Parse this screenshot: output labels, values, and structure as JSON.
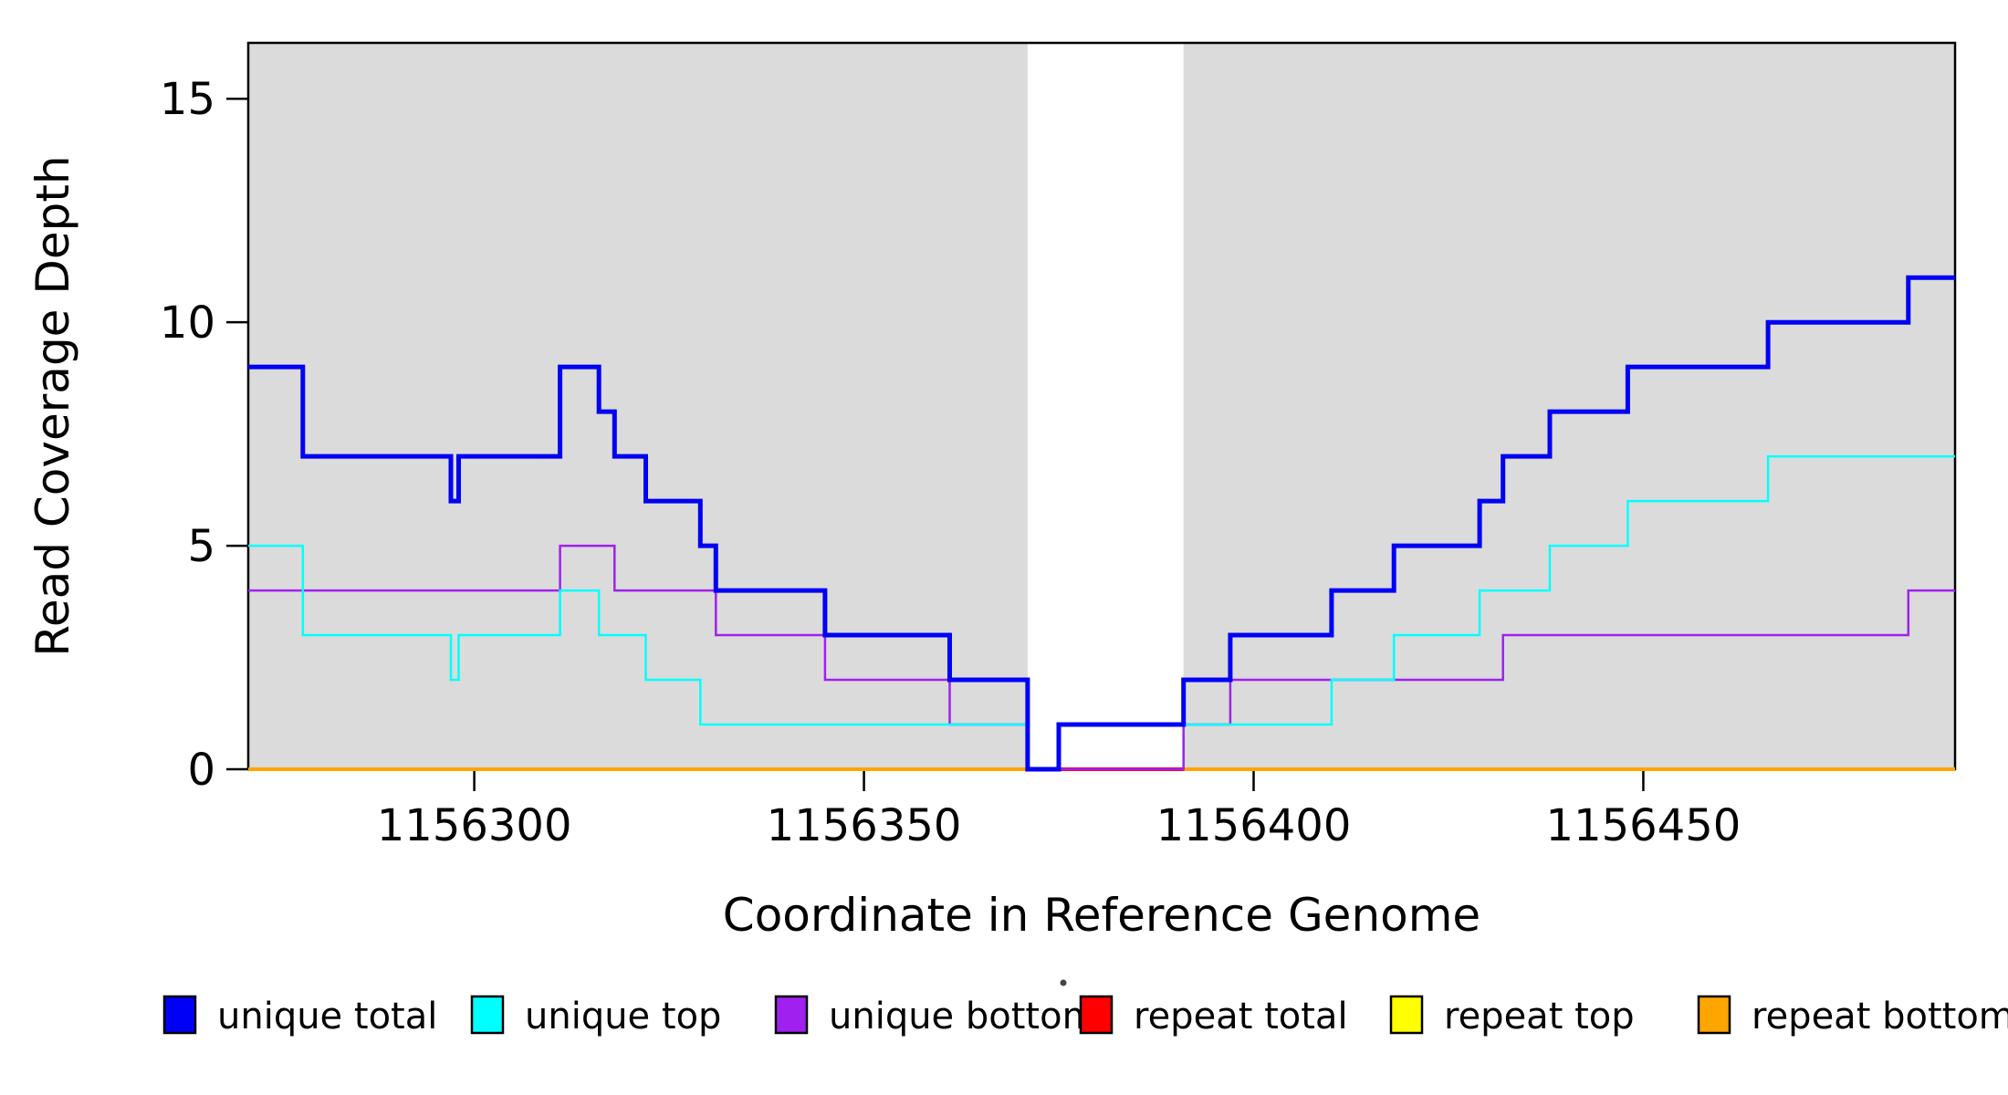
{
  "chart_data": {
    "type": "line",
    "subtype": "step-coverage",
    "title": "",
    "xlabel": "Coordinate in Reference Genome",
    "ylabel": "Read Coverage Depth",
    "x_axis": {
      "min": 1156271,
      "max": 1156490,
      "ticks": [
        1156300,
        1156350,
        1156400,
        1156450
      ]
    },
    "y_axis": {
      "min": 0,
      "max": 16.25,
      "ticks": [
        0,
        5,
        10,
        15
      ]
    },
    "grid": "off",
    "background_regions": [
      {
        "name": "unique-region-left",
        "start": 1156271,
        "end": 1156371,
        "color": "#DBDBDB"
      },
      {
        "name": "unique-region-right",
        "start": 1156391,
        "end": 1156490,
        "color": "#DBDBDB"
      }
    ],
    "gap_region": {
      "start": 1156371,
      "end": 1156391,
      "color": "#FFFFFF"
    },
    "series": [
      {
        "name": "repeat top",
        "color": "#FFFF00",
        "width": 3,
        "runs": [
          {
            "points": [
              [
                1156271,
                0
              ]
            ],
            "end": 1156371
          },
          {
            "points": [
              [
                1156391,
                0
              ]
            ],
            "end": 1156490
          }
        ]
      },
      {
        "name": "repeat total",
        "color": "#FF0000",
        "width": 4,
        "runs": [
          {
            "points": [
              [
                1156271,
                0
              ]
            ],
            "end": 1156490
          }
        ]
      },
      {
        "name": "repeat bottom",
        "color": "#FFA500",
        "width": 4,
        "runs": [
          {
            "points": [
              [
                1156271,
                0
              ]
            ],
            "end": 1156371
          },
          {
            "points": [
              [
                1156391,
                0
              ]
            ],
            "end": 1156490
          }
        ]
      },
      {
        "name": "unique bottom",
        "color": "#A020F0",
        "width": 2.5,
        "runs": [
          {
            "points": [
              [
                1156271,
                4
              ],
              [
                1156311,
                5
              ],
              [
                1156318,
                4
              ],
              [
                1156331,
                3
              ],
              [
                1156345,
                2
              ],
              [
                1156361,
                1
              ],
              [
                1156371,
                0
              ],
              [
                1156391,
                1
              ],
              [
                1156397,
                2
              ],
              [
                1156432,
                3
              ],
              [
                1156484,
                4
              ]
            ],
            "end": 1156490
          }
        ]
      },
      {
        "name": "unique top",
        "color": "#00FFFF",
        "width": 2.5,
        "runs": [
          {
            "points": [
              [
                1156271,
                5
              ],
              [
                1156278,
                3
              ],
              [
                1156297,
                2
              ],
              [
                1156298,
                3
              ],
              [
                1156311,
                4
              ],
              [
                1156316,
                3
              ],
              [
                1156322,
                2
              ],
              [
                1156329,
                1
              ],
              [
                1156371,
                0
              ],
              [
                1156375,
                1
              ],
              [
                1156410,
                2
              ],
              [
                1156418,
                3
              ],
              [
                1156429,
                4
              ],
              [
                1156438,
                5
              ],
              [
                1156448,
                6
              ],
              [
                1156466,
                7
              ]
            ],
            "end": 1156490
          }
        ]
      },
      {
        "name": "unique total",
        "color": "#0000F5",
        "width": 5,
        "runs": [
          {
            "points": [
              [
                1156271,
                9
              ],
              [
                1156278,
                7
              ],
              [
                1156297,
                6
              ],
              [
                1156298,
                7
              ],
              [
                1156311,
                9
              ],
              [
                1156316,
                8
              ],
              [
                1156318,
                7
              ],
              [
                1156322,
                6
              ],
              [
                1156329,
                5
              ],
              [
                1156331,
                4
              ],
              [
                1156345,
                3
              ],
              [
                1156361,
                2
              ],
              [
                1156371,
                0
              ],
              [
                1156375,
                1
              ],
              [
                1156391,
                2
              ],
              [
                1156397,
                3
              ],
              [
                1156410,
                4
              ],
              [
                1156418,
                5
              ],
              [
                1156429,
                6
              ],
              [
                1156432,
                7
              ],
              [
                1156438,
                8
              ],
              [
                1156448,
                9
              ],
              [
                1156466,
                10
              ],
              [
                1156484,
                11
              ]
            ],
            "end": 1156490
          }
        ]
      }
    ]
  },
  "legend": {
    "items": [
      {
        "label": "unique total",
        "color": "#0000F5"
      },
      {
        "label": "unique top",
        "color": "#00FFFF"
      },
      {
        "label": "unique bottom",
        "color": "#A020F0"
      },
      {
        "label": "repeat total",
        "color": "#FF0000"
      },
      {
        "label": "repeat top",
        "color": "#FFFF00"
      },
      {
        "label": "repeat bottom",
        "color": "#FFA500"
      }
    ]
  }
}
